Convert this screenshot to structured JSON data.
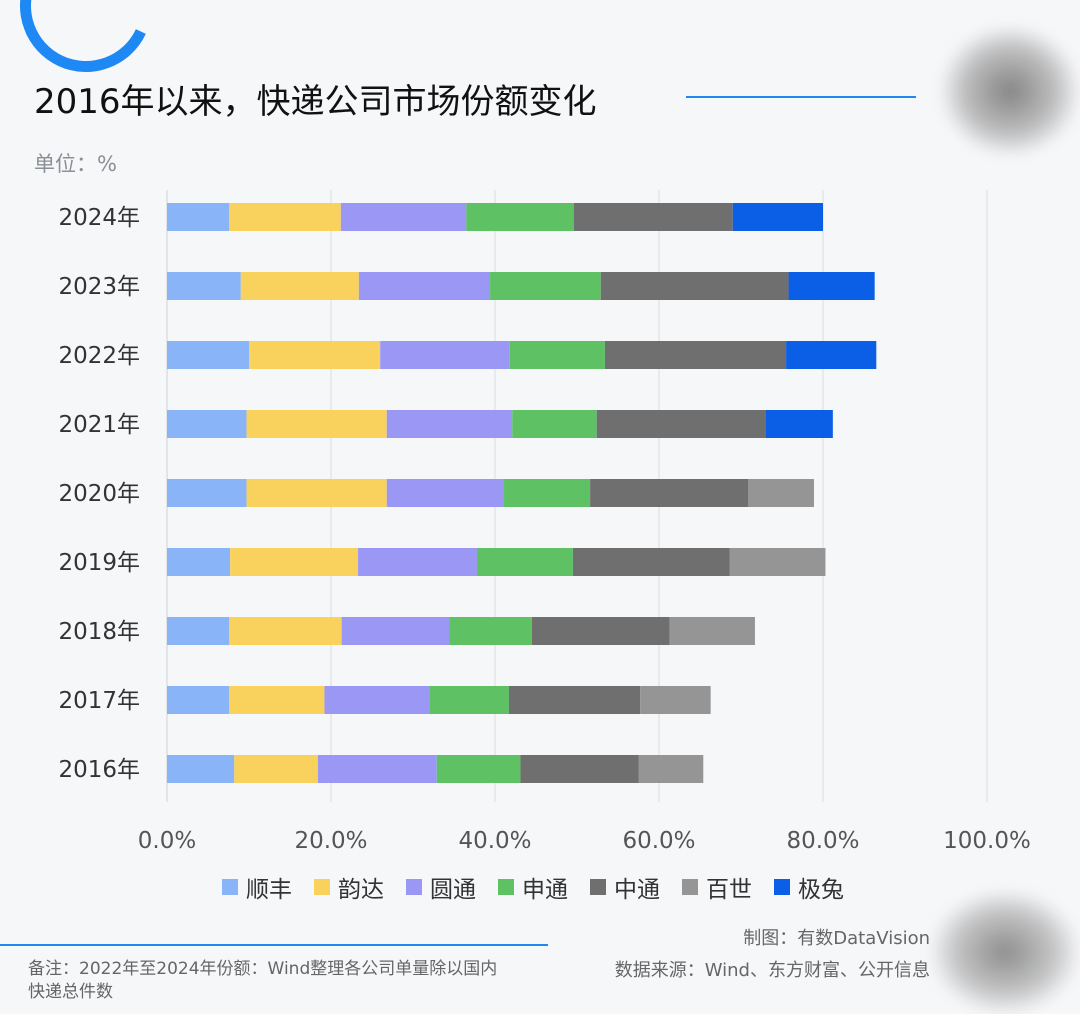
{
  "title": "2016年以来，快递公司市场份额变化",
  "unit_label": "单位：%",
  "note": "备注：2022年至2024年份额：Wind整理各公司单量除以国内快递总件数",
  "credit": "制图：有数DataVision",
  "source": "数据来源：Wind、东方财富、公开信息",
  "colors": {
    "accent": "#1e88f5",
    "grid": "#dcdde0"
  },
  "chart_data": {
    "type": "bar",
    "orientation": "horizontal",
    "stacked": true,
    "categories": [
      "2024年",
      "2023年",
      "2022年",
      "2021年",
      "2020年",
      "2019年",
      "2018年",
      "2017年",
      "2016年"
    ],
    "xlim": [
      0,
      100
    ],
    "xticks": [
      "0.0%",
      "20.0%",
      "40.0%",
      "60.0%",
      "80.0%",
      "100.0%"
    ],
    "grid": "vertical",
    "legend_position": "bottom",
    "series": [
      {
        "name": "顺丰",
        "color": "#8ab4f8",
        "values": [
          7.6,
          9.0,
          10.0,
          9.7,
          9.7,
          7.7,
          7.6,
          7.6,
          8.2
        ]
      },
      {
        "name": "韵达",
        "color": "#f9d25e",
        "values": [
          13.6,
          14.4,
          16.0,
          17.1,
          17.1,
          15.6,
          13.7,
          11.6,
          10.2
        ]
      },
      {
        "name": "圆通",
        "color": "#9b98f5",
        "values": [
          15.3,
          16.0,
          15.8,
          15.3,
          14.3,
          14.5,
          13.1,
          12.8,
          14.5
        ]
      },
      {
        "name": "申通",
        "color": "#5ec265",
        "values": [
          13.1,
          13.5,
          11.6,
          10.3,
          10.5,
          11.7,
          10.1,
          9.7,
          10.2
        ]
      },
      {
        "name": "中通",
        "color": "#6f6f6f",
        "values": [
          19.4,
          22.9,
          22.1,
          20.6,
          19.3,
          19.1,
          16.8,
          16.0,
          14.4
        ]
      },
      {
        "name": "百世",
        "color": "#959595",
        "values": [
          0,
          0,
          0,
          0,
          8.0,
          11.7,
          10.4,
          8.6,
          7.9
        ]
      },
      {
        "name": "极兔",
        "color": "#0a5fe6",
        "values": [
          11.0,
          10.5,
          11.0,
          8.2,
          0,
          0,
          0,
          0,
          0
        ]
      }
    ]
  }
}
